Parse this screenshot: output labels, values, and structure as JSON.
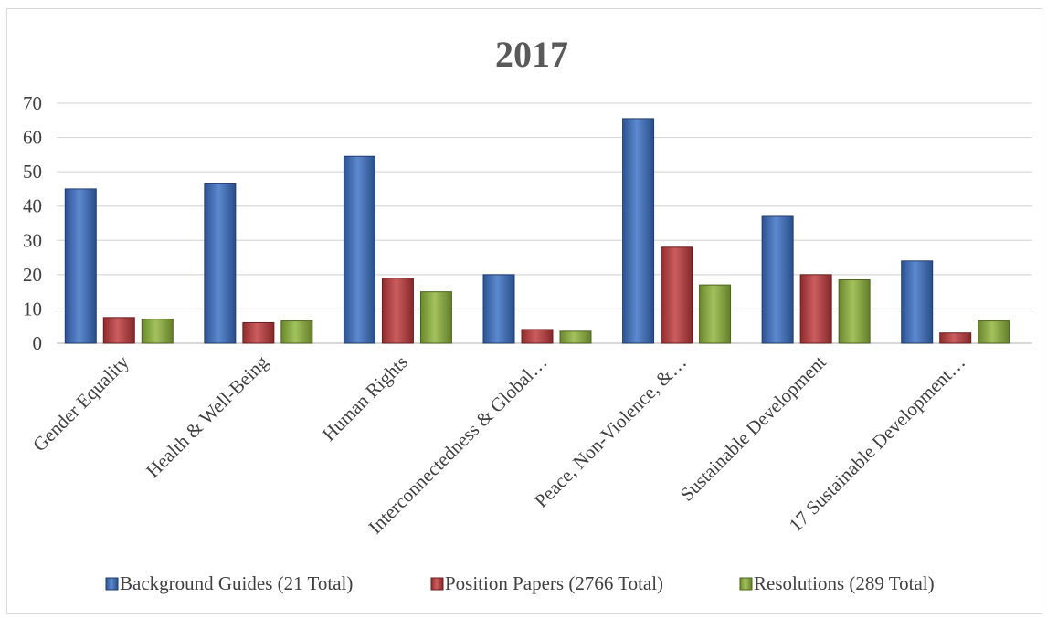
{
  "chart_data": {
    "type": "bar",
    "title": "2017",
    "xlabel": "",
    "ylabel": "",
    "ylim": [
      0,
      70
    ],
    "yticks": [
      0,
      10,
      20,
      30,
      40,
      50,
      60,
      70
    ],
    "grid": true,
    "legend_position": "bottom",
    "categories": [
      "Gender Equality",
      "Health & Well-Being",
      "Human Rights",
      "Interconnectedness & Global…",
      "Peace, Non-Violence, &…",
      "Sustainable Development",
      "17 Sustainable Development…"
    ],
    "series": [
      {
        "name": "Background Guides (21 Total)",
        "color": "#3a6fc4",
        "values": [
          45,
          46.5,
          54.5,
          20,
          65.5,
          37,
          24
        ]
      },
      {
        "name": "Position Papers (2766 Total)",
        "color": "#c0393b",
        "values": [
          7.5,
          6,
          19,
          4,
          28,
          20,
          3
        ]
      },
      {
        "name": "Resolutions (289 Total)",
        "color": "#8db53a",
        "values": [
          7,
          6.5,
          15,
          3.5,
          17,
          18.5,
          6.5
        ]
      }
    ]
  }
}
